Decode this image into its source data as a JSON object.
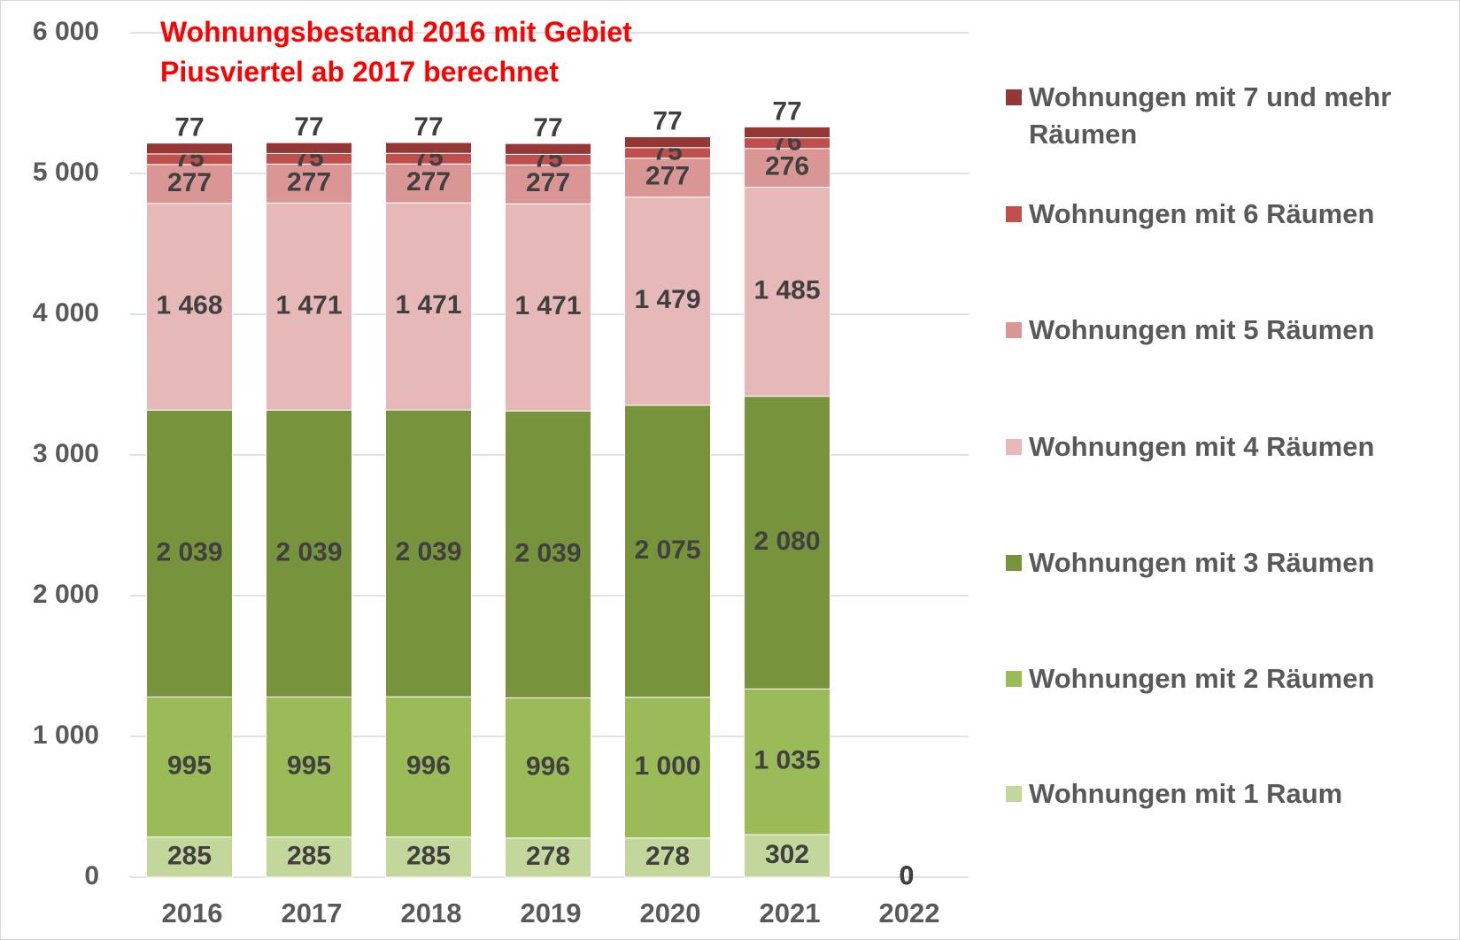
{
  "chart_data": {
    "type": "stacked_bar",
    "title": [
      "Wohnungsbestand 2016 mit Gebiet",
      "Piusviertel ab 2017 berechnet"
    ],
    "categories": [
      "2016",
      "2017",
      "2018",
      "2019",
      "2020",
      "2021",
      "2022"
    ],
    "series": [
      {
        "name": "Wohnungen mit 1 Raum",
        "color": "#c3d69b",
        "values": [
          285,
          285,
          285,
          278,
          278,
          302,
          0
        ],
        "value_labels": [
          "285",
          "285",
          "285",
          "278",
          "278",
          "302",
          "0"
        ]
      },
      {
        "name": "Wohnungen mit 2 Räumen",
        "color": "#9bbb59",
        "values": [
          995,
          995,
          996,
          996,
          1000,
          1035,
          0
        ],
        "value_labels": [
          "995",
          "995",
          "996",
          "996",
          "1 000",
          "1 035",
          "0"
        ]
      },
      {
        "name": "Wohnungen mit 3 Räumen",
        "color": "#77933c",
        "values": [
          2039,
          2039,
          2039,
          2039,
          2075,
          2080,
          0
        ],
        "value_labels": [
          "2 039",
          "2 039",
          "2 039",
          "2 039",
          "2 075",
          "2 080",
          "0"
        ]
      },
      {
        "name": "Wohnungen mit 4 Räumen",
        "color": "#e6b9b8",
        "values": [
          1468,
          1471,
          1471,
          1471,
          1479,
          1485,
          0
        ],
        "value_labels": [
          "1 468",
          "1 471",
          "1 471",
          "1 471",
          "1 479",
          "1 485",
          "0"
        ]
      },
      {
        "name": "Wohnungen mit 5 Räumen",
        "color": "#d99694",
        "values": [
          277,
          277,
          277,
          277,
          277,
          276,
          0
        ],
        "value_labels": [
          "277",
          "277",
          "277",
          "277",
          "277",
          "276",
          "0"
        ]
      },
      {
        "name": "Wohnungen mit 6 Räumen",
        "color": "#c0504d",
        "values": [
          75,
          75,
          75,
          75,
          75,
          76,
          0
        ],
        "value_labels": [
          "75",
          "75",
          "75",
          "75",
          "75",
          "76",
          "0"
        ]
      },
      {
        "name": "Wohnungen mit 7 und mehr Räumen",
        "color": "#953735",
        "values": [
          77,
          77,
          77,
          77,
          77,
          77,
          0
        ],
        "value_labels": [
          "77",
          "77",
          "77",
          "77",
          "77",
          "77",
          "0"
        ]
      }
    ],
    "ylim": [
      0,
      6000
    ],
    "yticks": [
      0,
      {
        "value": 1000,
        "label": "1 000"
      },
      {
        "value": 2000,
        "label": "2 000"
      },
      {
        "value": 3000,
        "label": "3 000"
      },
      {
        "value": 4000,
        "label": "4 000"
      },
      {
        "value": 5000,
        "label": "5 000"
      },
      {
        "value": 6000,
        "label": "6 000"
      }
    ],
    "grid": true,
    "legend": "right",
    "title_color": "#ff0000"
  }
}
